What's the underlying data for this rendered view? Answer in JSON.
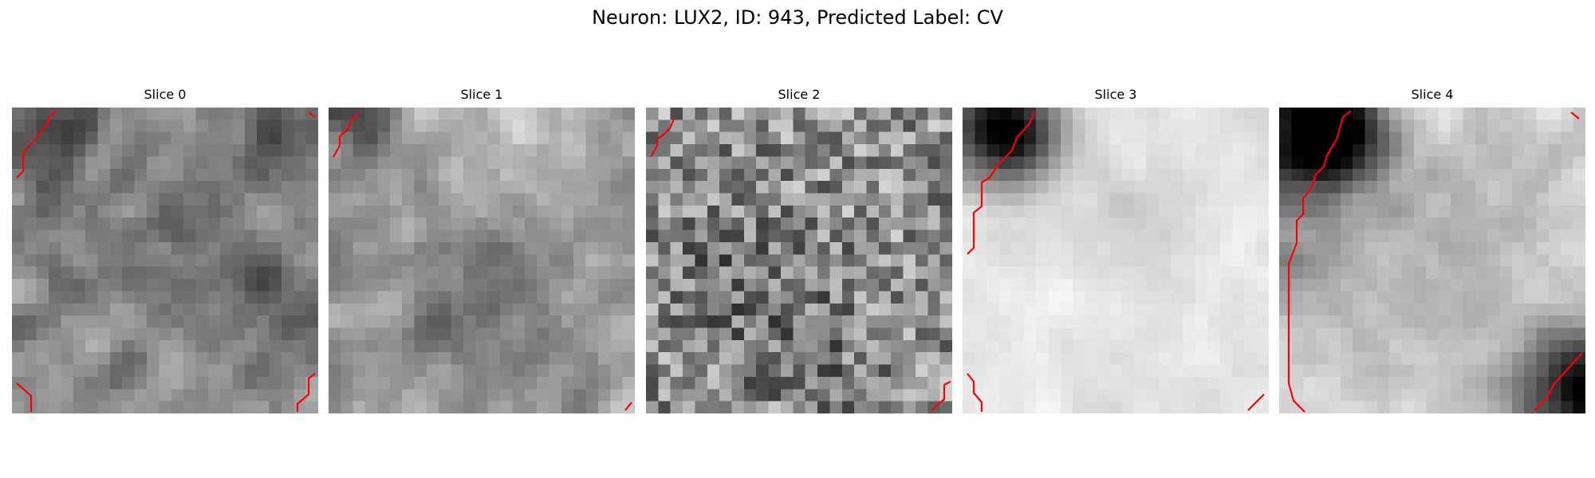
{
  "figure": {
    "title": "Neuron: LUX2, ID: 943, Predicted Label: CV"
  },
  "panels": [
    {
      "title": "Slice 0",
      "contour_color": "#ff0000"
    },
    {
      "title": "Slice 1",
      "contour_color": "#ff0000"
    },
    {
      "title": "Slice 2",
      "contour_color": "#ff0000"
    },
    {
      "title": "Slice 3",
      "contour_color": "#ff0000"
    },
    {
      "title": "Slice 4",
      "contour_color": "#ff0000"
    }
  ]
}
